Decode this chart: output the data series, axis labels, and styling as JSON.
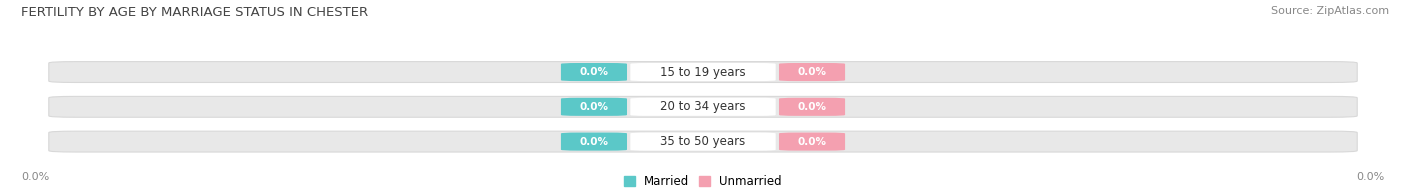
{
  "title": "FERTILITY BY AGE BY MARRIAGE STATUS IN CHESTER",
  "source": "Source: ZipAtlas.com",
  "age_groups": [
    "15 to 19 years",
    "20 to 34 years",
    "35 to 50 years"
  ],
  "married_values": [
    "0.0%",
    "0.0%",
    "0.0%"
  ],
  "unmarried_values": [
    "0.0%",
    "0.0%",
    "0.0%"
  ],
  "married_color": "#5bc8c8",
  "unmarried_color": "#f4a0b0",
  "bar_bg_color": "#e8e8e8",
  "bar_bg_edge_color": "#d8d8d8",
  "married_label": "Married",
  "unmarried_label": "Unmarried",
  "background_color": "#ffffff",
  "title_fontsize": 9.5,
  "source_fontsize": 8,
  "bar_label_fontsize": 7.5,
  "age_label_fontsize": 8.5,
  "legend_fontsize": 8.5,
  "axis_label_fontsize": 8,
  "axis_label_color": "#888888",
  "title_color": "#444444",
  "source_color": "#888888"
}
